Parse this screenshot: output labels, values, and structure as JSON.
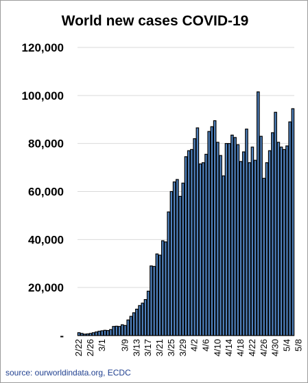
{
  "chart_data": {
    "type": "bar",
    "title": "World new cases COVID-19",
    "source": "source: ourworldindata.org, ECDC",
    "xlabel": "",
    "ylabel": "",
    "ylim": [
      0,
      120000
    ],
    "yticks": [
      {
        "value": 0,
        "label": "-"
      },
      {
        "value": 20000,
        "label": "20,000"
      },
      {
        "value": 40000,
        "label": "40,000"
      },
      {
        "value": 60000,
        "label": "60,000"
      },
      {
        "value": 80000,
        "label": "80,000"
      },
      {
        "value": 100000,
        "label": "100,000"
      },
      {
        "value": 120000,
        "label": "120,000"
      }
    ],
    "grid": true,
    "legend": "none",
    "bar_color": "#4f81bd",
    "bar_edge_color": "#000000",
    "xtick_labels": [
      {
        "index": 0,
        "label": "2/22"
      },
      {
        "index": 4,
        "label": "2/26"
      },
      {
        "index": 8,
        "label": "3/1"
      },
      {
        "index": 16,
        "label": "3/9"
      },
      {
        "index": 20,
        "label": "3/13"
      },
      {
        "index": 24,
        "label": "3/17"
      },
      {
        "index": 28,
        "label": "3/21"
      },
      {
        "index": 32,
        "label": "3/25"
      },
      {
        "index": 36,
        "label": "3/29"
      },
      {
        "index": 40,
        "label": "4/2"
      },
      {
        "index": 44,
        "label": "4/6"
      },
      {
        "index": 48,
        "label": "4/10"
      },
      {
        "index": 52,
        "label": "4/14"
      },
      {
        "index": 56,
        "label": "4/18"
      },
      {
        "index": 60,
        "label": "4/22"
      },
      {
        "index": 64,
        "label": "4/26"
      },
      {
        "index": 68,
        "label": "4/30"
      },
      {
        "index": 72,
        "label": "5/4"
      },
      {
        "index": 76,
        "label": "5/8"
      }
    ],
    "values": [
      1200,
      900,
      600,
      700,
      900,
      1200,
      1500,
      1800,
      2000,
      2200,
      2100,
      2500,
      3800,
      3900,
      3800,
      4500,
      4200,
      6500,
      8000,
      9500,
      11000,
      12500,
      13500,
      15000,
      18500,
      29000,
      28800,
      34000,
      33500,
      39500,
      39000,
      51500,
      60000,
      64000,
      65000,
      58000,
      63500,
      74500,
      77000,
      77500,
      82000,
      86500,
      71500,
      72000,
      75500,
      85000,
      87000,
      89500,
      80500,
      75000,
      66500,
      80000,
      80000,
      83500,
      82500,
      79500,
      72500,
      76500,
      86000,
      72000,
      78500,
      73000,
      101500,
      83000,
      65500,
      72000,
      77000,
      84500,
      93000,
      80500,
      78500,
      77500,
      79000,
      89000,
      94500
    ]
  }
}
